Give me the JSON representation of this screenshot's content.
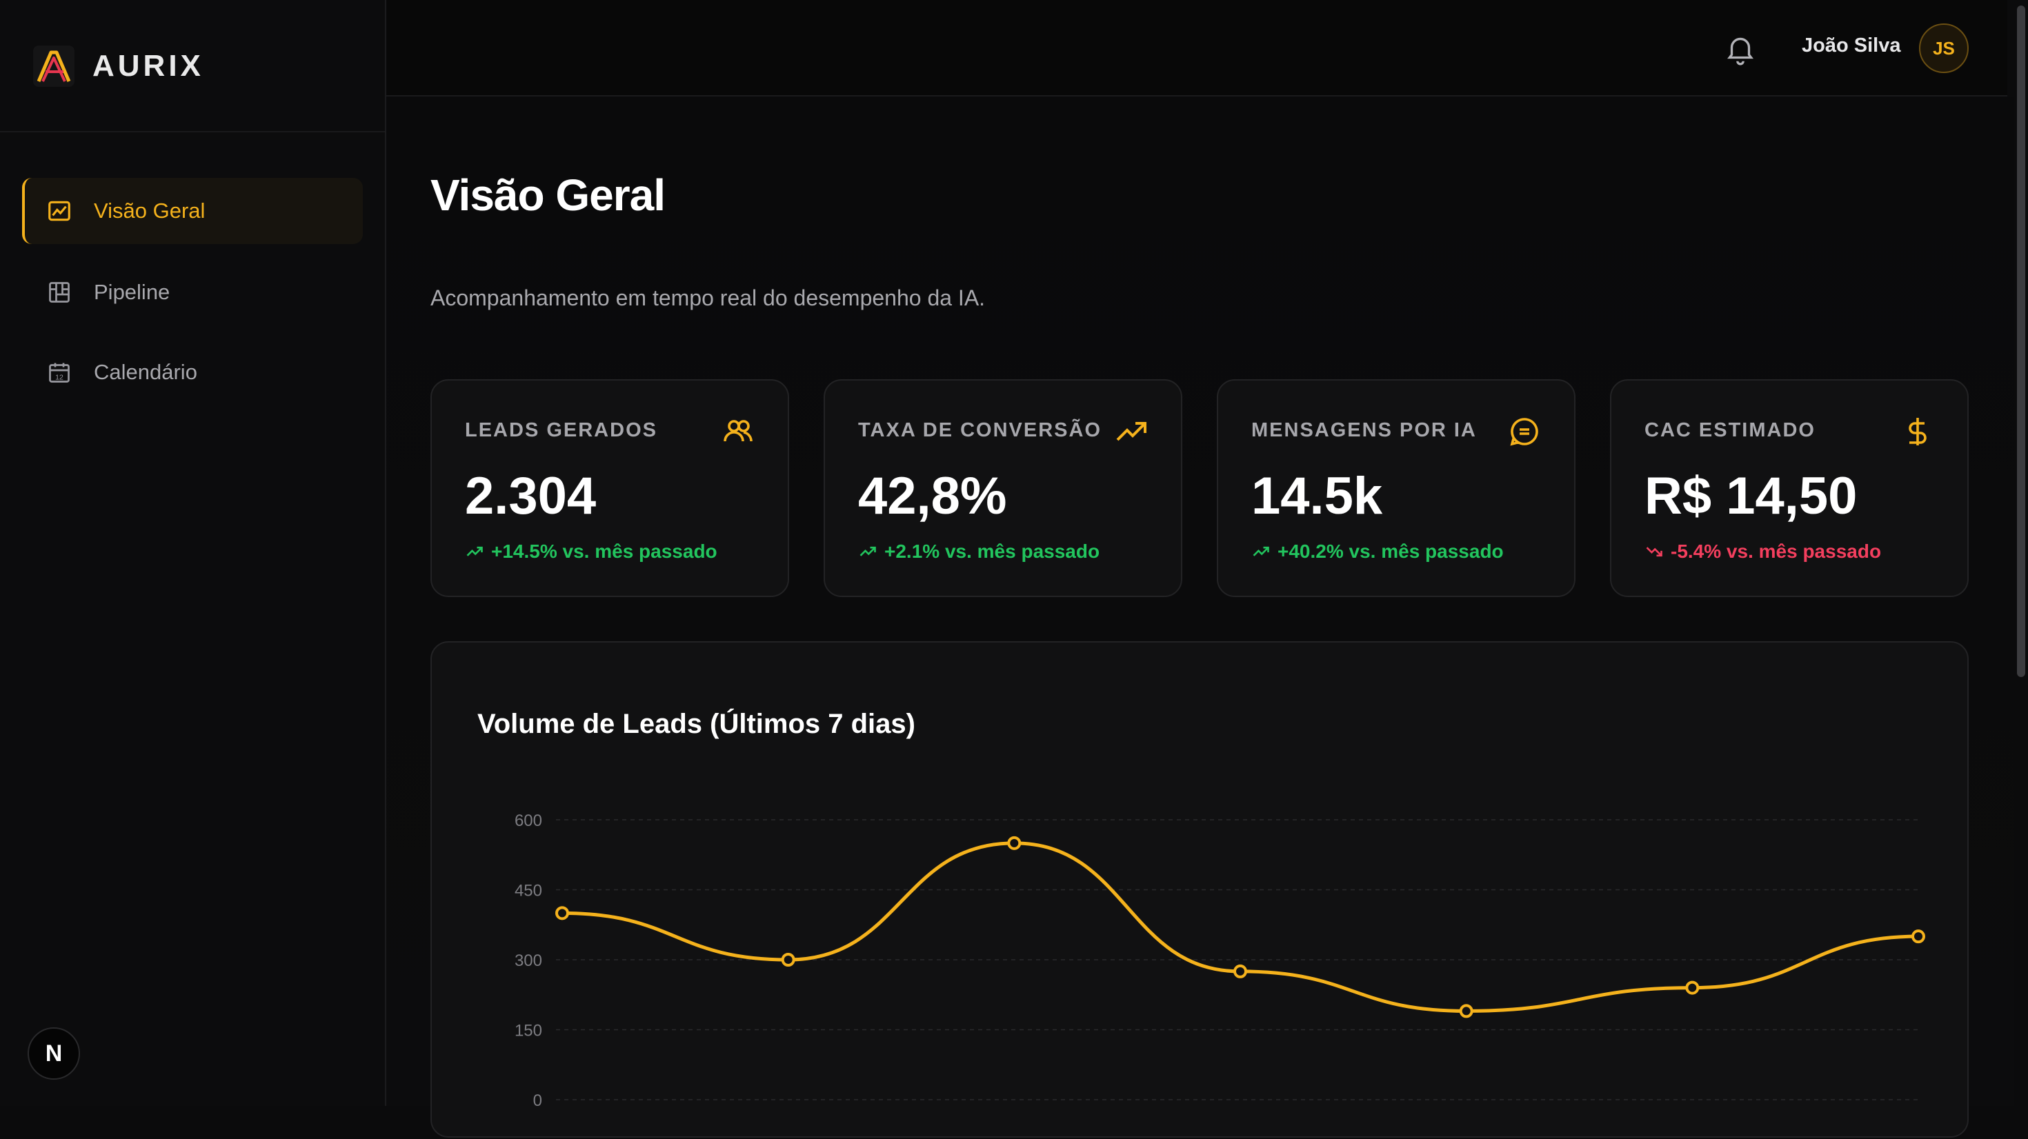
{
  "app": {
    "brand_name": "AURIX"
  },
  "sidebar": {
    "items": [
      {
        "label": "Visão Geral",
        "icon": "chart-image-icon",
        "active": true
      },
      {
        "label": "Pipeline",
        "icon": "kanban-icon",
        "active": false
      },
      {
        "label": "Calendário",
        "icon": "calendar-icon",
        "active": false
      }
    ],
    "footer_badge": "N"
  },
  "header": {
    "user_name": "João Silva",
    "avatar_initials": "JS",
    "notification_icon": "bell-icon"
  },
  "page": {
    "title": "Visão Geral",
    "subtitle": "Acompanhamento em tempo real do desempenho da IA."
  },
  "colors": {
    "accent": "#f5b21c",
    "positive": "#22c55e",
    "negative": "#f43f5e",
    "background": "#0b0b0c",
    "card": "#111112"
  },
  "kpis": [
    {
      "label": "LEADS GERADOS",
      "value": "2.304",
      "delta": "+14.5% vs. mês passado",
      "trend": "up",
      "icon": "users-icon"
    },
    {
      "label": "TAXA DE CONVERSÃO",
      "value": "42,8%",
      "delta": "+2.1% vs. mês passado",
      "trend": "up",
      "icon": "trending-up-icon"
    },
    {
      "label": "MENSAGENS POR IA",
      "value": "14.5k",
      "delta": "+40.2% vs. mês passado",
      "trend": "up",
      "icon": "message-icon"
    },
    {
      "label": "CAC ESTIMADO",
      "value": "R$ 14,50",
      "delta": "-5.4% vs. mês passado",
      "trend": "down",
      "icon": "dollar-icon"
    }
  ],
  "chart": {
    "title": "Volume de Leads (Últimos 7 dias)"
  },
  "chart_data": {
    "type": "line",
    "title": "Volume de Leads (Últimos 7 dias)",
    "xlabel": "",
    "ylabel": "",
    "yticks": [
      "600",
      "450",
      "300",
      "150",
      "0"
    ],
    "ylim": [
      0,
      600
    ],
    "grid": true,
    "smooth": true,
    "values": [
      400,
      300,
      550,
      275,
      190,
      240,
      350
    ],
    "color": "#f5b21c"
  }
}
